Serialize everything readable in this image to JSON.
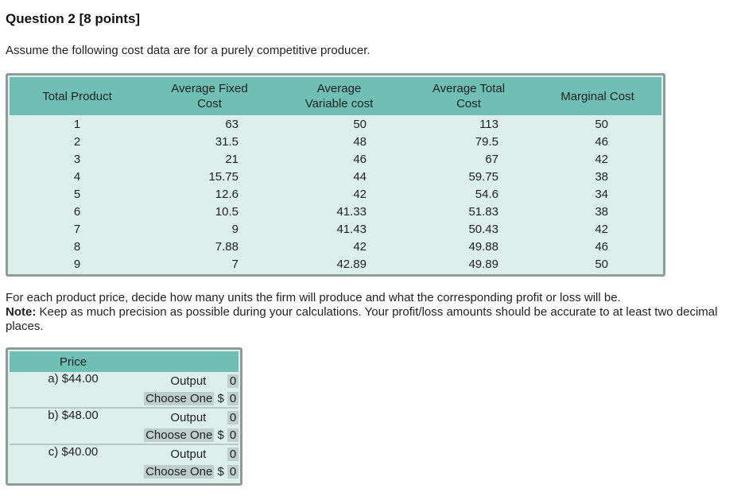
{
  "title": "Question 2 [8 points]",
  "intro": "Assume the following cost data are for a purely competitive producer.",
  "cost_table": {
    "headers": [
      "Total Product",
      "Average Fixed Cost",
      "Average Variable cost",
      "Average Total Cost",
      "Marginal Cost"
    ],
    "rows": [
      [
        "1",
        "63",
        "50",
        "113",
        "50"
      ],
      [
        "2",
        "31.5",
        "48",
        "79.5",
        "46"
      ],
      [
        "3",
        "21",
        "46",
        "67",
        "42"
      ],
      [
        "4",
        "15.75",
        "44",
        "59.75",
        "38"
      ],
      [
        "5",
        "12.6",
        "42",
        "54.6",
        "34"
      ],
      [
        "6",
        "10.5",
        "41.33",
        "51.83",
        "38"
      ],
      [
        "7",
        "9",
        "41.43",
        "50.43",
        "42"
      ],
      [
        "8",
        "7.88",
        "42",
        "49.88",
        "46"
      ],
      [
        "9",
        "7",
        "42.89",
        "49.89",
        "50"
      ]
    ]
  },
  "instructions": "For each product price, decide how many units the firm will produce and what the corresponding profit or loss will be.",
  "note_label": "Note:",
  "note_text": " Keep as much precision as possible during your calculations. Your profit/loss amounts should be accurate to at least two decimal places.",
  "price_table": {
    "header": "Price",
    "output_label": "Output",
    "select_placeholder": "Choose One",
    "currency": "$",
    "items": [
      {
        "price": "a) $44.00",
        "output": "0",
        "amount": "0"
      },
      {
        "price": "b) $48.00",
        "output": "0",
        "amount": "0"
      },
      {
        "price": "c) $40.00",
        "output": "0",
        "amount": "0"
      }
    ]
  },
  "colors": {
    "header": "#6fbfb4",
    "body": "#dcefeb",
    "border": "#8e9c97"
  }
}
